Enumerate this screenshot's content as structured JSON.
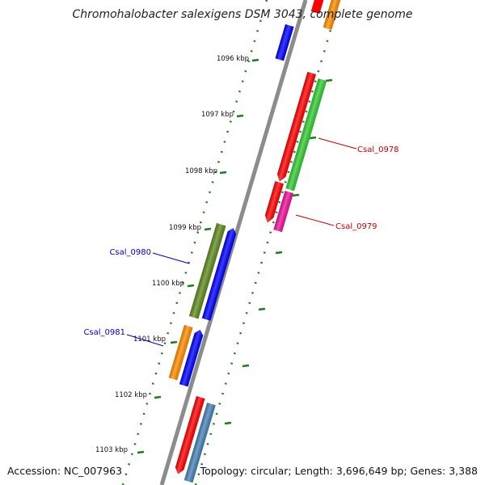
{
  "title": "Chromohalobacter salexigens DSM 3043, complete genome",
  "footer": {
    "accession": "Accession: NC_007963",
    "summary": "Topology: circular; Length: 3,696,649 bp; Genes: 3,388"
  },
  "ticks": [
    "1096 kbp",
    "1097 kbp",
    "1098 kbp",
    "1099 kbp",
    "1100 kbp",
    "1101 kbp",
    "1102 kbp",
    "1103 kbp"
  ],
  "gene_labels": {
    "csal_0978": "Csal_0978",
    "csal_0979": "Csal_0979",
    "csal_0980": "Csal_0980",
    "csal_0981": "Csal_0981"
  },
  "colors": {
    "backbone": "#8c8c8c",
    "tick": "#1e7a1e",
    "label_forward": "#cc0000",
    "label_reverse": "#0000cc",
    "red": "#ff0000",
    "blue": "#0000ff",
    "green": "#33cc33",
    "magenta": "#ee1199",
    "olive": "#5f8a1e",
    "orange": "#ff8c00",
    "steelblue": "#4682b4"
  }
}
